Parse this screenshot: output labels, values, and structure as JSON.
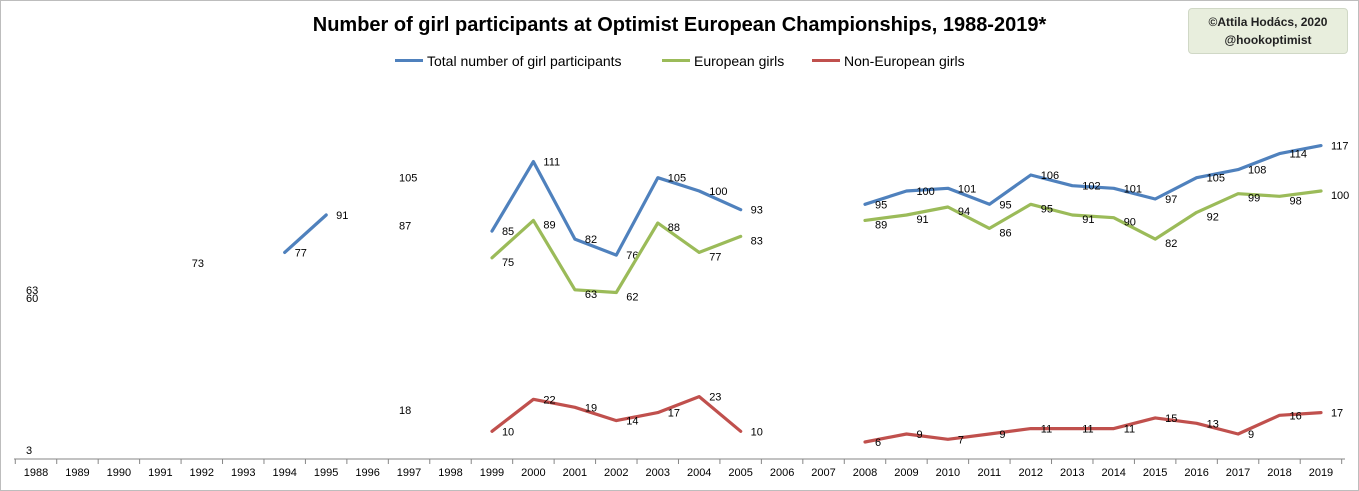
{
  "credit": {
    "line1": "©Attila Hodács, 2020",
    "line2": "@hookoptimist"
  },
  "chart_data": {
    "type": "line",
    "title": "Number of girl participants at Optimist European Championships, 1988-2019*",
    "xlabel": "",
    "ylabel": "",
    "legend_position": "top",
    "grid": false,
    "categories": [
      "1988",
      "1989",
      "1990",
      "1991",
      "1992",
      "1993",
      "1994",
      "1995",
      "1996",
      "1997",
      "1998",
      "1999",
      "2000",
      "2001",
      "2002",
      "2003",
      "2004",
      "2005",
      "2006",
      "2007",
      "2008",
      "2009",
      "2010",
      "2011",
      "2012",
      "2013",
      "2014",
      "2015",
      "2016",
      "2017",
      "2018",
      "2019"
    ],
    "ylim": [
      0,
      120
    ],
    "series": [
      {
        "name": "Total number of girl participants",
        "color": "#4f81bd",
        "values": [
          63,
          null,
          null,
          null,
          73,
          null,
          77,
          91,
          null,
          105,
          null,
          85,
          111,
          82,
          76,
          105,
          100,
          93,
          null,
          null,
          95,
          100,
          101,
          95,
          106,
          102,
          101,
          97,
          105,
          108,
          114,
          117
        ]
      },
      {
        "name": "European girls",
        "color": "#9bbb59",
        "values": [
          60,
          null,
          null,
          null,
          null,
          null,
          null,
          null,
          null,
          87,
          null,
          75,
          89,
          63,
          62,
          88,
          77,
          83,
          null,
          null,
          89,
          91,
          94,
          86,
          95,
          91,
          90,
          82,
          92,
          99,
          98,
          100
        ]
      },
      {
        "name": "Non-European girls",
        "color": "#c0504d",
        "values": [
          3,
          null,
          null,
          null,
          null,
          null,
          null,
          null,
          null,
          18,
          null,
          10,
          22,
          19,
          14,
          17,
          23,
          10,
          null,
          null,
          6,
          9,
          7,
          9,
          11,
          11,
          11,
          15,
          13,
          9,
          16,
          17
        ]
      }
    ]
  }
}
